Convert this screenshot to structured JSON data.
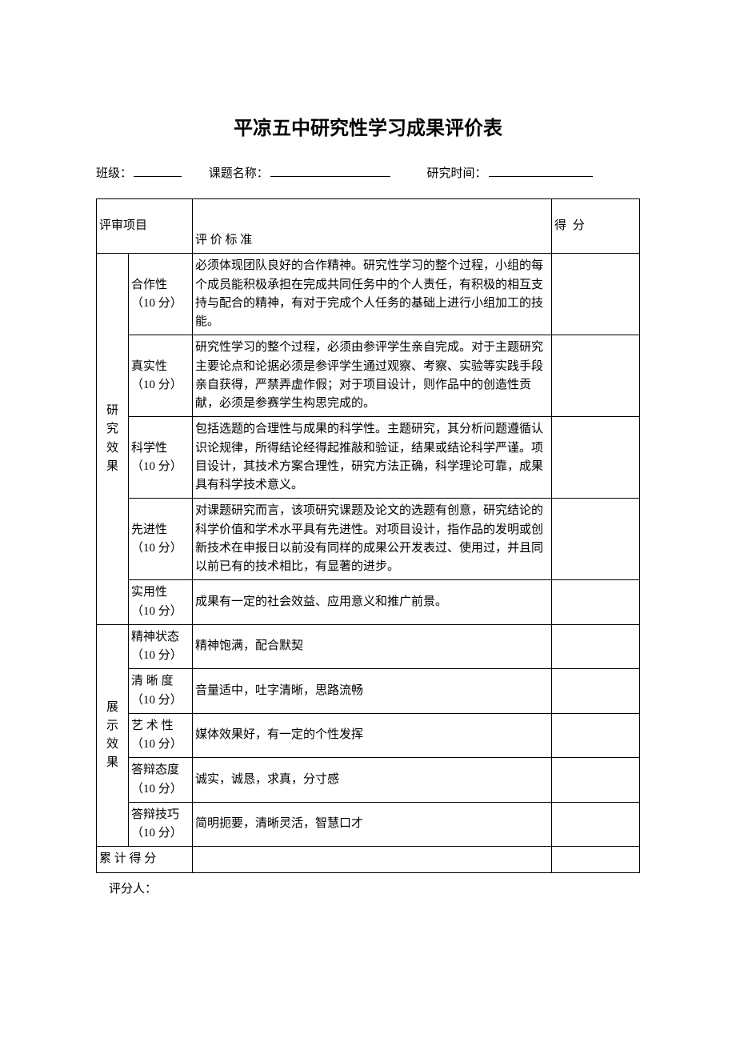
{
  "title": "平凉五中研究性学习成果评价表",
  "form": {
    "class_label": "班级：",
    "topic_label": "课题名称：",
    "time_label": "研究时间："
  },
  "header": {
    "col_category": "评审项目",
    "col_standard": "评 价 标 准",
    "col_score": "得  分"
  },
  "groups": [
    {
      "name_chars": [
        "研",
        "究",
        "效",
        "果"
      ],
      "rows": [
        {
          "item_name": "合作性",
          "item_pts": "（10 分）",
          "std": "必须体现团队良好的合作精神。研究性学习的整个过程，小组的每个成员能积极承担在完成共同任务中的个人责任，有积极的相互支持与配合的精神，有对于完成个人任务的基础上进行小组加工的技能。"
        },
        {
          "item_name": "真实性",
          "item_pts": "（10 分）",
          "std": "研究性学习的整个过程，必须由参评学生亲自完成。对于主题研究主要论点和论据必须是参评学生通过观察、考察、实验等实践手段亲自获得，严禁弄虚作假；对于项目设计，则作品中的创造性贡献，必须是参赛学生构思完成的。"
        },
        {
          "item_name": "科学性",
          "item_pts": "（10 分）",
          "std": "包括选题的合理性与成果的科学性。主题研究，其分析问题遵循认识论规律，所得结论经得起推敲和验证，结果或结论科学严谨。项目设计，其技术方案合理性，研究方法正确，科学理论可靠，成果具有科学技术意义。"
        },
        {
          "item_name": "先进性",
          "item_pts": "（10 分）",
          "std": "对课题研究而言，该项研究课题及论文的选题有创意，研究结论的科学价值和学术水平具有先进性。对项目设计，指作品的发明或创新技术在申报日以前没有同样的成果公开发表过、使用过，并且同以前已有的技术相比，有显著的进步。"
        },
        {
          "item_name": "实用性",
          "item_pts": "（10 分）",
          "std": "成果有一定的社会效益、应用意义和推广前景。"
        }
      ]
    },
    {
      "name_chars": [
        "展",
        "示",
        "效",
        "果"
      ],
      "rows": [
        {
          "item_name": "精神状态",
          "item_pts": "（10 分）",
          "std": "精神饱满，配合默契"
        },
        {
          "item_name": "清 晰 度",
          "item_pts": "（10 分）",
          "std": "音量适中，吐字清晰，思路流畅"
        },
        {
          "item_name": "艺 术 性",
          "item_pts": "（10 分）",
          "std": "媒体效果好，有一定的个性发挥"
        },
        {
          "item_name": "答辩态度",
          "item_pts": "（10 分）",
          "std": "诚实，诚恳，求真，分寸感"
        },
        {
          "item_name": "答辩技巧",
          "item_pts": "（10 分）",
          "std": "简明扼要，清晰灵活，智慧口才"
        }
      ]
    }
  ],
  "total_label": "累   计   得   分",
  "scorer_label": "评分人："
}
